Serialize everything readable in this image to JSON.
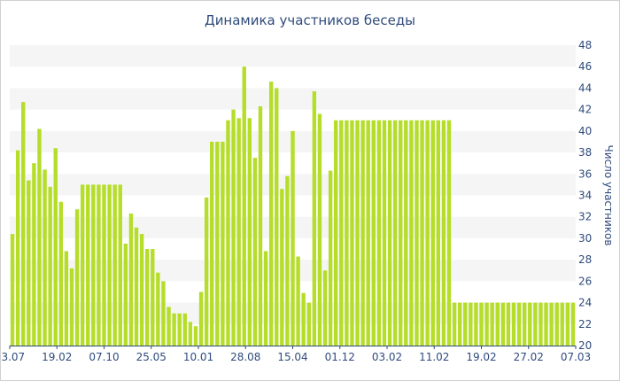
{
  "chart_data": {
    "type": "bar",
    "title": "Динамика участников беседы",
    "ylabel": "Число участников",
    "xlabel": "",
    "ylim": [
      20,
      48
    ],
    "yticks": [
      20,
      22,
      24,
      26,
      28,
      30,
      32,
      34,
      36,
      38,
      40,
      42,
      44,
      46,
      48
    ],
    "x_tick_labels": [
      "03.07",
      "19.02",
      "07.10",
      "25.05",
      "10.01",
      "28.08",
      "15.04",
      "01.12",
      "03.02",
      "11.02",
      "19.02",
      "27.02",
      "07.03"
    ],
    "grid": "horizontal bands",
    "bar_color": "#b5dd2a",
    "band_color": "#f5f5f5",
    "text_color": "#2f4b7c",
    "values": [
      30.4,
      38.2,
      42.7,
      35.4,
      37,
      40.2,
      36.4,
      34.8,
      38.4,
      33.4,
      28.8,
      27.2,
      32.7,
      35,
      35,
      35,
      35,
      35,
      35,
      35,
      35,
      29.5,
      32.3,
      31,
      30.4,
      29,
      29,
      26.8,
      26,
      23.6,
      23,
      23,
      23,
      22.2,
      21.8,
      25,
      33.8,
      39,
      39,
      39,
      41,
      42,
      41.2,
      46,
      41.2,
      37.5,
      42.3,
      28.8,
      44.6,
      44,
      34.6,
      35.8,
      40,
      28.3,
      24.9,
      24,
      43.7,
      41.6,
      27,
      36.3,
      41,
      41,
      41,
      41,
      41,
      41,
      41,
      41,
      41,
      41,
      41,
      41,
      41,
      41,
      41,
      41,
      41,
      41,
      41,
      41,
      41,
      41,
      24,
      24,
      24,
      24,
      24,
      24,
      24,
      24,
      24,
      24,
      24,
      24,
      24,
      24,
      24,
      24,
      24,
      24,
      24,
      24,
      24,
      24,
      24
    ]
  }
}
